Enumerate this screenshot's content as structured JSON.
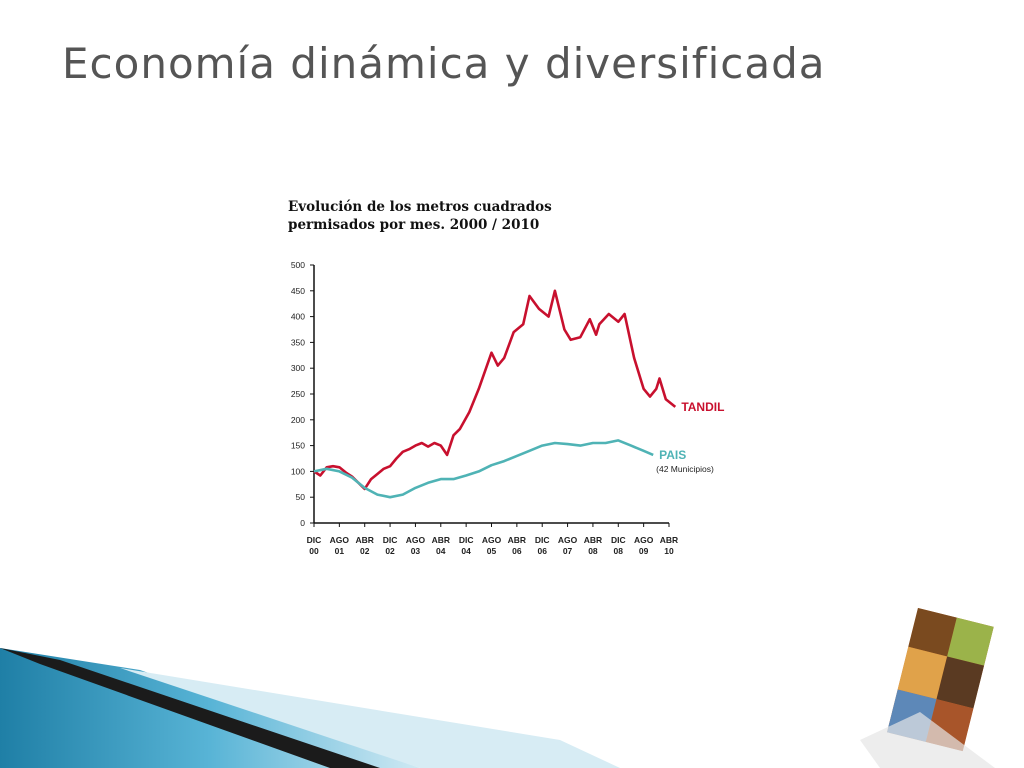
{
  "slide_title": "Economía dinámica y diversificada",
  "chart_data": {
    "type": "line",
    "title": [
      "Evolución de los metros cuadrados",
      "permisados por mes. 2000 / 2010"
    ],
    "xlim": [
      0,
      112
    ],
    "xticks": [
      {
        "value": 0,
        "label": "DIC 00"
      },
      {
        "value": 8,
        "label": "AGO 01"
      },
      {
        "value": 16,
        "label": "ABR 02"
      },
      {
        "value": 24,
        "label": "DIC 02"
      },
      {
        "value": 32,
        "label": "AGO 03"
      },
      {
        "value": 40,
        "label": "ABR 04"
      },
      {
        "value": 48,
        "label": "DIC 04"
      },
      {
        "value": 56,
        "label": "AGO 05"
      },
      {
        "value": 64,
        "label": "ABR 06"
      },
      {
        "value": 72,
        "label": "DIC 06"
      },
      {
        "value": 80,
        "label": "AGO 07"
      },
      {
        "value": 88,
        "label": "ABR 08"
      },
      {
        "value": 96,
        "label": "DIC 08"
      },
      {
        "value": 104,
        "label": "AGO 09"
      },
      {
        "value": 112,
        "label": "ABR 10"
      }
    ],
    "ylim": [
      0,
      500
    ],
    "yticks": [
      0,
      50,
      100,
      150,
      200,
      250,
      300,
      350,
      400,
      450,
      500
    ],
    "grid": false,
    "series": [
      {
        "name": "TANDIL",
        "color": "#c8102e",
        "x": [
          0,
          2,
          4,
          6,
          8,
          10,
          12,
          14,
          16,
          18,
          20,
          22,
          24,
          26,
          28,
          30,
          32,
          34,
          36,
          38,
          40,
          42,
          44,
          46,
          49,
          52,
          56,
          58,
          60,
          63,
          66,
          68,
          71,
          74,
          76,
          79,
          81,
          84,
          87,
          89,
          90,
          93,
          96,
          98,
          101,
          104,
          106,
          108,
          109,
          111,
          114
        ],
        "values": [
          100,
          92,
          108,
          110,
          108,
          98,
          90,
          78,
          66,
          85,
          95,
          105,
          110,
          125,
          138,
          143,
          150,
          155,
          148,
          155,
          150,
          132,
          170,
          182,
          215,
          260,
          330,
          305,
          320,
          370,
          385,
          440,
          415,
          400,
          450,
          375,
          355,
          360,
          395,
          365,
          385,
          405,
          390,
          405,
          320,
          260,
          245,
          260,
          280,
          240,
          225
        ]
      },
      {
        "name": "PAIS",
        "color": "#4fb3b5",
        "annotation": "(42 Municipios)",
        "x": [
          0,
          4,
          8,
          12,
          16,
          20,
          24,
          28,
          32,
          36,
          40,
          44,
          48,
          52,
          56,
          60,
          64,
          68,
          72,
          76,
          80,
          84,
          88,
          92,
          96,
          100,
          104,
          107
        ],
        "values": [
          100,
          105,
          100,
          88,
          68,
          55,
          50,
          55,
          68,
          78,
          85,
          85,
          92,
          100,
          112,
          120,
          130,
          140,
          150,
          155,
          153,
          150,
          155,
          155,
          160,
          150,
          140,
          132
        ]
      }
    ]
  }
}
